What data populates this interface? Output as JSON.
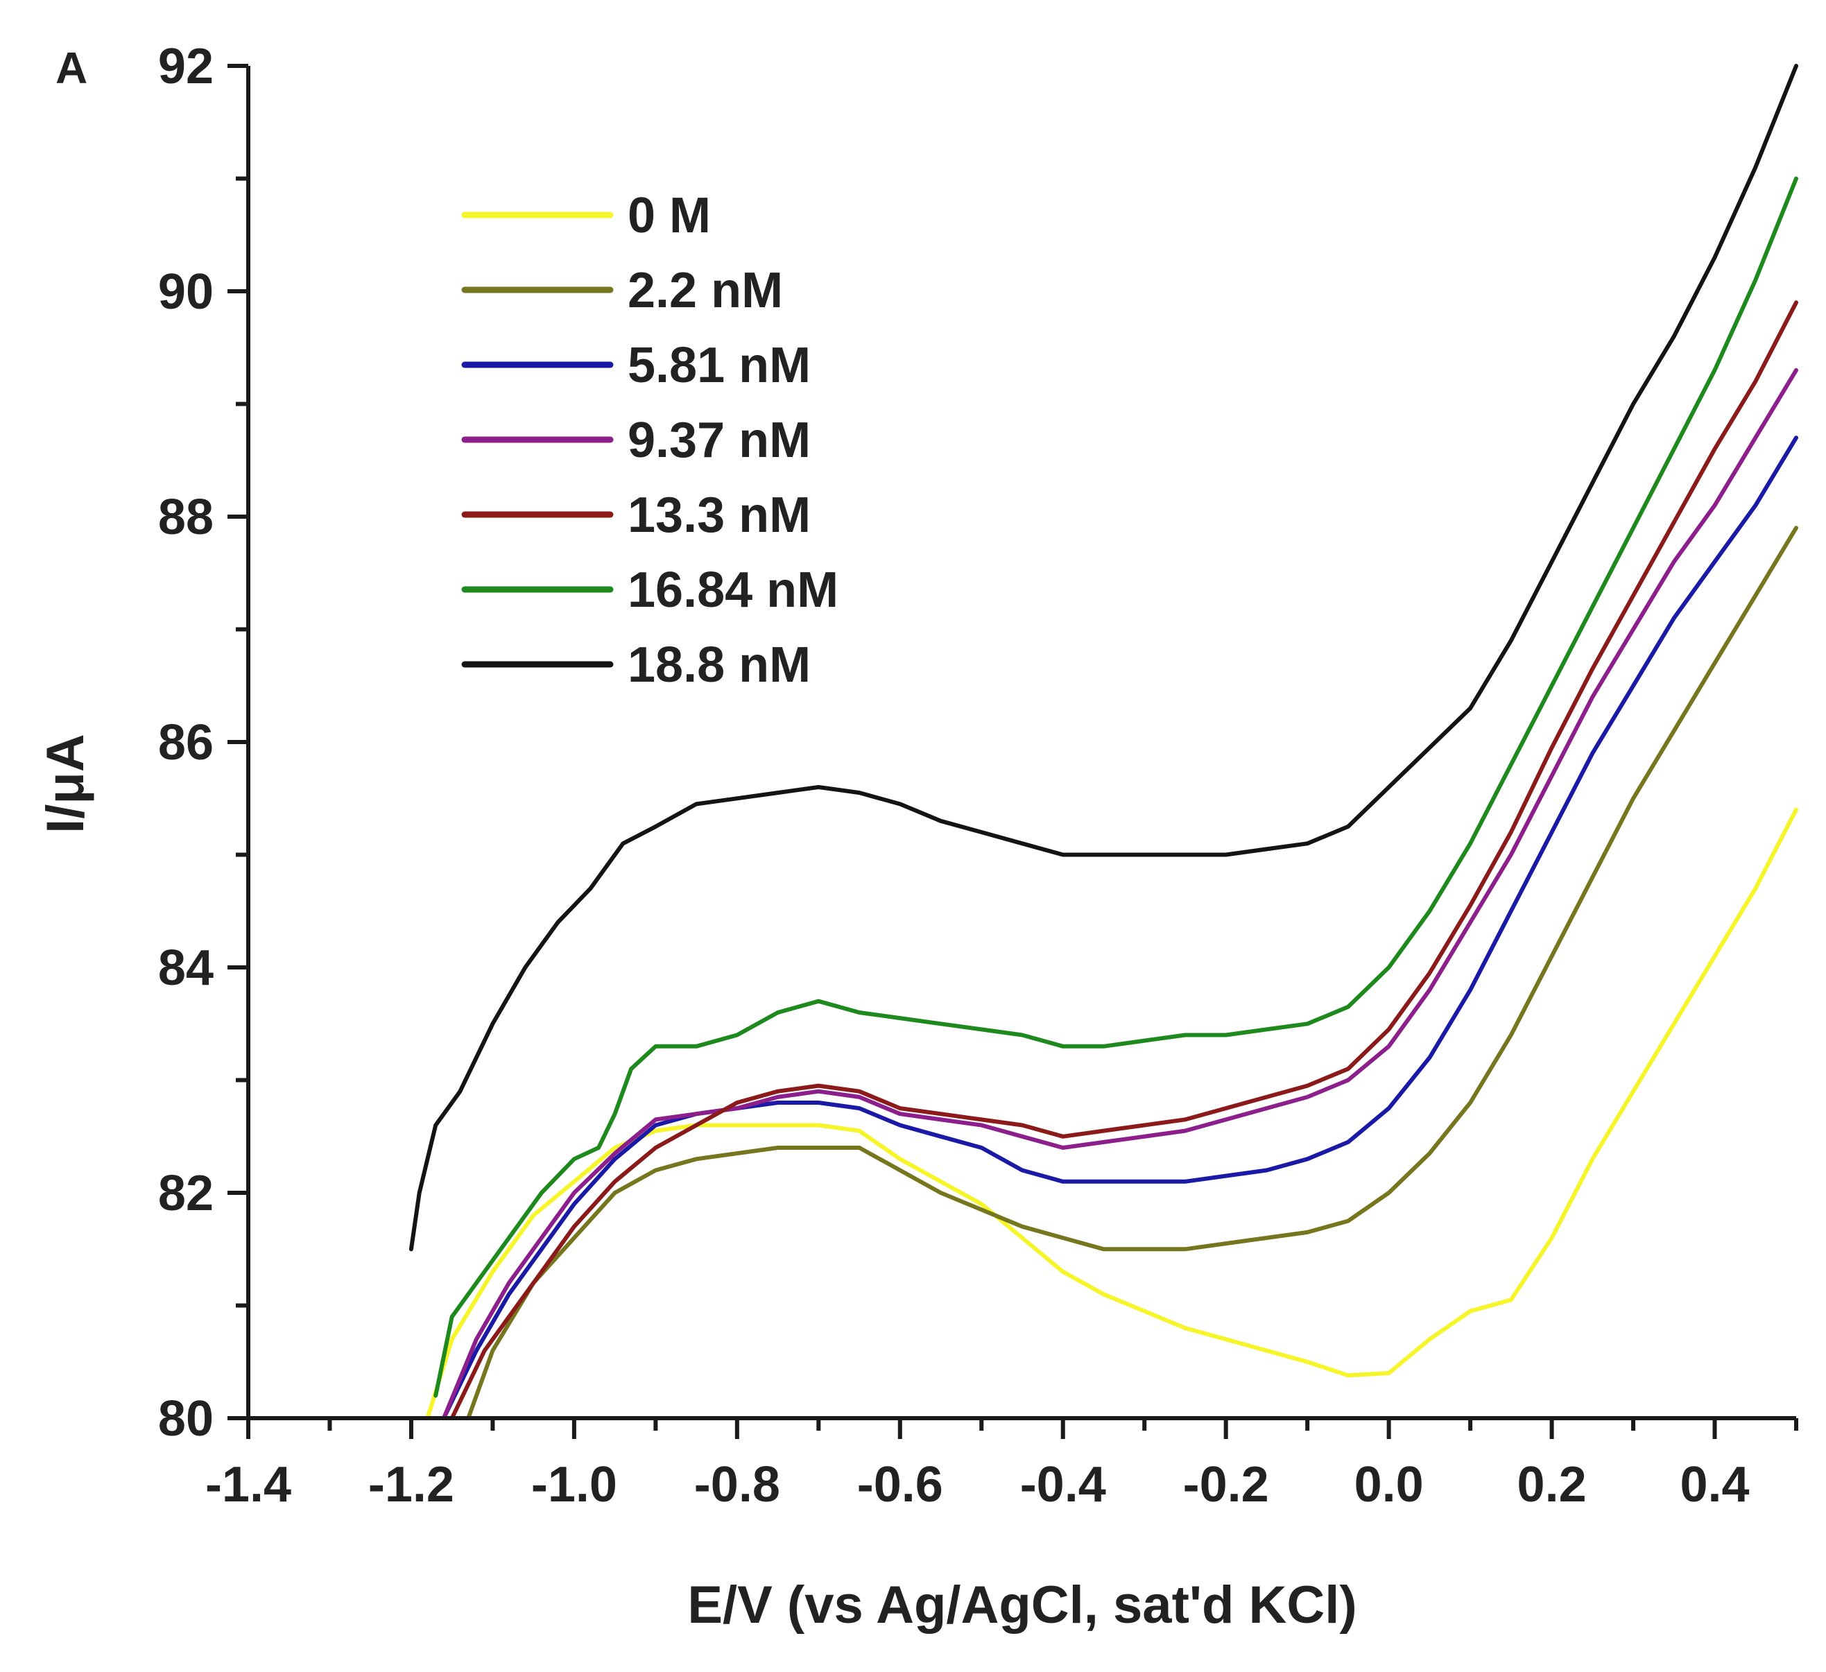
{
  "chart_data": {
    "type": "line",
    "panel_label": "A",
    "xlabel": "E/V (vs Ag/AgCl, sat'd KCl)",
    "ylabel": "I/μA",
    "xlim": [
      -1.4,
      0.5
    ],
    "ylim": [
      80,
      92
    ],
    "x_ticks": [
      -1.4,
      -1.2,
      -1.0,
      -0.8,
      -0.6,
      -0.4,
      -0.2,
      0.0,
      0.2,
      0.4
    ],
    "x_tick_labels": [
      "-1.4",
      "-1.2",
      "-1.0",
      "-0.8",
      "-0.6",
      "-0.4",
      "-0.2",
      "0.0",
      "0.2",
      "0.4"
    ],
    "y_ticks": [
      80,
      82,
      84,
      86,
      88,
      90,
      92
    ],
    "y_tick_labels": [
      "80",
      "82",
      "84",
      "86",
      "88",
      "90",
      "92"
    ],
    "grid": false,
    "legend_position": "top-left",
    "series": [
      {
        "name": "0 M",
        "color": "#f5f52a",
        "points": [
          [
            -1.18,
            80.0
          ],
          [
            -1.15,
            80.7
          ],
          [
            -1.1,
            81.3
          ],
          [
            -1.05,
            81.8
          ],
          [
            -1.0,
            82.1
          ],
          [
            -0.95,
            82.4
          ],
          [
            -0.9,
            82.55
          ],
          [
            -0.85,
            82.6
          ],
          [
            -0.8,
            82.6
          ],
          [
            -0.75,
            82.6
          ],
          [
            -0.7,
            82.6
          ],
          [
            -0.65,
            82.55
          ],
          [
            -0.6,
            82.3
          ],
          [
            -0.55,
            82.1
          ],
          [
            -0.5,
            81.9
          ],
          [
            -0.45,
            81.6
          ],
          [
            -0.4,
            81.3
          ],
          [
            -0.35,
            81.1
          ],
          [
            -0.3,
            80.95
          ],
          [
            -0.25,
            80.8
          ],
          [
            -0.2,
            80.7
          ],
          [
            -0.15,
            80.6
          ],
          [
            -0.1,
            80.5
          ],
          [
            -0.05,
            80.38
          ],
          [
            0.0,
            80.4
          ],
          [
            0.05,
            80.7
          ],
          [
            0.1,
            80.95
          ],
          [
            0.15,
            81.05
          ],
          [
            0.2,
            81.6
          ],
          [
            0.25,
            82.3
          ],
          [
            0.3,
            82.9
          ],
          [
            0.35,
            83.5
          ],
          [
            0.4,
            84.1
          ],
          [
            0.45,
            84.7
          ],
          [
            0.5,
            85.4
          ]
        ]
      },
      {
        "name": "2.2 nM",
        "color": "#76761e",
        "points": [
          [
            -1.13,
            80.0
          ],
          [
            -1.1,
            80.6
          ],
          [
            -1.05,
            81.2
          ],
          [
            -1.0,
            81.6
          ],
          [
            -0.95,
            82.0
          ],
          [
            -0.9,
            82.2
          ],
          [
            -0.85,
            82.3
          ],
          [
            -0.8,
            82.35
          ],
          [
            -0.75,
            82.4
          ],
          [
            -0.7,
            82.4
          ],
          [
            -0.65,
            82.4
          ],
          [
            -0.6,
            82.2
          ],
          [
            -0.55,
            82.0
          ],
          [
            -0.5,
            81.85
          ],
          [
            -0.45,
            81.7
          ],
          [
            -0.4,
            81.6
          ],
          [
            -0.35,
            81.5
          ],
          [
            -0.3,
            81.5
          ],
          [
            -0.25,
            81.5
          ],
          [
            -0.2,
            81.55
          ],
          [
            -0.15,
            81.6
          ],
          [
            -0.1,
            81.65
          ],
          [
            -0.05,
            81.75
          ],
          [
            0.0,
            82.0
          ],
          [
            0.05,
            82.35
          ],
          [
            0.1,
            82.8
          ],
          [
            0.15,
            83.4
          ],
          [
            0.2,
            84.1
          ],
          [
            0.25,
            84.8
          ],
          [
            0.3,
            85.5
          ],
          [
            0.35,
            86.1
          ],
          [
            0.4,
            86.7
          ],
          [
            0.45,
            87.3
          ],
          [
            0.5,
            87.9
          ]
        ]
      },
      {
        "name": "5.81 nM",
        "color": "#1a1aa6",
        "points": [
          [
            -1.16,
            80.0
          ],
          [
            -1.12,
            80.6
          ],
          [
            -1.08,
            81.1
          ],
          [
            -1.04,
            81.5
          ],
          [
            -1.0,
            81.9
          ],
          [
            -0.95,
            82.3
          ],
          [
            -0.9,
            82.6
          ],
          [
            -0.85,
            82.7
          ],
          [
            -0.8,
            82.75
          ],
          [
            -0.75,
            82.8
          ],
          [
            -0.7,
            82.8
          ],
          [
            -0.65,
            82.75
          ],
          [
            -0.6,
            82.6
          ],
          [
            -0.55,
            82.5
          ],
          [
            -0.5,
            82.4
          ],
          [
            -0.45,
            82.2
          ],
          [
            -0.4,
            82.1
          ],
          [
            -0.35,
            82.1
          ],
          [
            -0.3,
            82.1
          ],
          [
            -0.25,
            82.1
          ],
          [
            -0.2,
            82.15
          ],
          [
            -0.15,
            82.2
          ],
          [
            -0.1,
            82.3
          ],
          [
            -0.05,
            82.45
          ],
          [
            0.0,
            82.75
          ],
          [
            0.05,
            83.2
          ],
          [
            0.1,
            83.8
          ],
          [
            0.15,
            84.5
          ],
          [
            0.2,
            85.2
          ],
          [
            0.25,
            85.9
          ],
          [
            0.3,
            86.5
          ],
          [
            0.35,
            87.1
          ],
          [
            0.4,
            87.6
          ],
          [
            0.45,
            88.1
          ],
          [
            0.5,
            88.7
          ]
        ]
      },
      {
        "name": "9.37 nM",
        "color": "#8c1f8c",
        "points": [
          [
            -1.16,
            80.0
          ],
          [
            -1.12,
            80.7
          ],
          [
            -1.08,
            81.2
          ],
          [
            -1.04,
            81.6
          ],
          [
            -1.0,
            82.0
          ],
          [
            -0.95,
            82.35
          ],
          [
            -0.9,
            82.65
          ],
          [
            -0.85,
            82.7
          ],
          [
            -0.8,
            82.75
          ],
          [
            -0.75,
            82.85
          ],
          [
            -0.7,
            82.9
          ],
          [
            -0.65,
            82.85
          ],
          [
            -0.6,
            82.7
          ],
          [
            -0.55,
            82.65
          ],
          [
            -0.5,
            82.6
          ],
          [
            -0.45,
            82.5
          ],
          [
            -0.4,
            82.4
          ],
          [
            -0.35,
            82.45
          ],
          [
            -0.3,
            82.5
          ],
          [
            -0.25,
            82.55
          ],
          [
            -0.2,
            82.65
          ],
          [
            -0.15,
            82.75
          ],
          [
            -0.1,
            82.85
          ],
          [
            -0.05,
            83.0
          ],
          [
            0.0,
            83.3
          ],
          [
            0.05,
            83.8
          ],
          [
            0.1,
            84.4
          ],
          [
            0.15,
            85.0
          ],
          [
            0.2,
            85.7
          ],
          [
            0.25,
            86.4
          ],
          [
            0.3,
            87.0
          ],
          [
            0.35,
            87.6
          ],
          [
            0.4,
            88.1
          ],
          [
            0.45,
            88.7
          ],
          [
            0.5,
            89.3
          ]
        ]
      },
      {
        "name": "13.3 nM",
        "color": "#8b1a1a",
        "points": [
          [
            -1.15,
            80.0
          ],
          [
            -1.11,
            80.6
          ],
          [
            -1.07,
            81.0
          ],
          [
            -1.03,
            81.4
          ],
          [
            -1.0,
            81.7
          ],
          [
            -0.95,
            82.1
          ],
          [
            -0.9,
            82.4
          ],
          [
            -0.85,
            82.6
          ],
          [
            -0.8,
            82.8
          ],
          [
            -0.75,
            82.9
          ],
          [
            -0.7,
            82.95
          ],
          [
            -0.65,
            82.9
          ],
          [
            -0.6,
            82.75
          ],
          [
            -0.55,
            82.7
          ],
          [
            -0.5,
            82.65
          ],
          [
            -0.45,
            82.6
          ],
          [
            -0.4,
            82.5
          ],
          [
            -0.35,
            82.55
          ],
          [
            -0.3,
            82.6
          ],
          [
            -0.25,
            82.65
          ],
          [
            -0.2,
            82.75
          ],
          [
            -0.15,
            82.85
          ],
          [
            -0.1,
            82.95
          ],
          [
            -0.05,
            83.1
          ],
          [
            0.0,
            83.45
          ],
          [
            0.05,
            83.95
          ],
          [
            0.1,
            84.55
          ],
          [
            0.15,
            85.2
          ],
          [
            0.2,
            85.95
          ],
          [
            0.25,
            86.65
          ],
          [
            0.3,
            87.3
          ],
          [
            0.35,
            87.95
          ],
          [
            0.4,
            88.6
          ],
          [
            0.45,
            89.2
          ],
          [
            0.5,
            89.9
          ]
        ]
      },
      {
        "name": "16.84 nM",
        "color": "#1e8a1e",
        "points": [
          [
            -1.17,
            80.2
          ],
          [
            -1.15,
            80.9
          ],
          [
            -1.12,
            81.2
          ],
          [
            -1.08,
            81.6
          ],
          [
            -1.04,
            82.0
          ],
          [
            -1.0,
            82.3
          ],
          [
            -0.97,
            82.4
          ],
          [
            -0.95,
            82.7
          ],
          [
            -0.93,
            83.1
          ],
          [
            -0.9,
            83.3
          ],
          [
            -0.85,
            83.3
          ],
          [
            -0.8,
            83.4
          ],
          [
            -0.75,
            83.6
          ],
          [
            -0.7,
            83.7
          ],
          [
            -0.65,
            83.6
          ],
          [
            -0.6,
            83.55
          ],
          [
            -0.55,
            83.5
          ],
          [
            -0.5,
            83.45
          ],
          [
            -0.45,
            83.4
          ],
          [
            -0.4,
            83.3
          ],
          [
            -0.35,
            83.3
          ],
          [
            -0.3,
            83.35
          ],
          [
            -0.25,
            83.4
          ],
          [
            -0.2,
            83.4
          ],
          [
            -0.15,
            83.45
          ],
          [
            -0.1,
            83.5
          ],
          [
            -0.05,
            83.65
          ],
          [
            0.0,
            84.0
          ],
          [
            0.05,
            84.5
          ],
          [
            0.1,
            85.1
          ],
          [
            0.15,
            85.8
          ],
          [
            0.2,
            86.5
          ],
          [
            0.25,
            87.2
          ],
          [
            0.3,
            87.9
          ],
          [
            0.35,
            88.6
          ],
          [
            0.4,
            89.3
          ],
          [
            0.45,
            90.1
          ],
          [
            0.5,
            91.0
          ]
        ]
      },
      {
        "name": "18.8 nM",
        "color": "#141414",
        "points": [
          [
            -1.2,
            81.5
          ],
          [
            -1.19,
            82.0
          ],
          [
            -1.17,
            82.6
          ],
          [
            -1.14,
            82.9
          ],
          [
            -1.1,
            83.5
          ],
          [
            -1.06,
            84.0
          ],
          [
            -1.02,
            84.4
          ],
          [
            -0.98,
            84.7
          ],
          [
            -0.94,
            85.1
          ],
          [
            -0.9,
            85.25
          ],
          [
            -0.85,
            85.45
          ],
          [
            -0.8,
            85.5
          ],
          [
            -0.75,
            85.55
          ],
          [
            -0.7,
            85.6
          ],
          [
            -0.65,
            85.55
          ],
          [
            -0.6,
            85.45
          ],
          [
            -0.55,
            85.3
          ],
          [
            -0.5,
            85.2
          ],
          [
            -0.45,
            85.1
          ],
          [
            -0.4,
            85.0
          ],
          [
            -0.35,
            85.0
          ],
          [
            -0.3,
            85.0
          ],
          [
            -0.25,
            85.0
          ],
          [
            -0.2,
            85.0
          ],
          [
            -0.15,
            85.05
          ],
          [
            -0.1,
            85.1
          ],
          [
            -0.05,
            85.25
          ],
          [
            0.0,
            85.6
          ],
          [
            0.05,
            85.95
          ],
          [
            0.1,
            86.3
          ],
          [
            0.15,
            86.9
          ],
          [
            0.2,
            87.6
          ],
          [
            0.25,
            88.3
          ],
          [
            0.3,
            89.0
          ],
          [
            0.35,
            89.6
          ],
          [
            0.4,
            90.3
          ],
          [
            0.45,
            91.1
          ],
          [
            0.5,
            92.0
          ]
        ]
      }
    ]
  }
}
